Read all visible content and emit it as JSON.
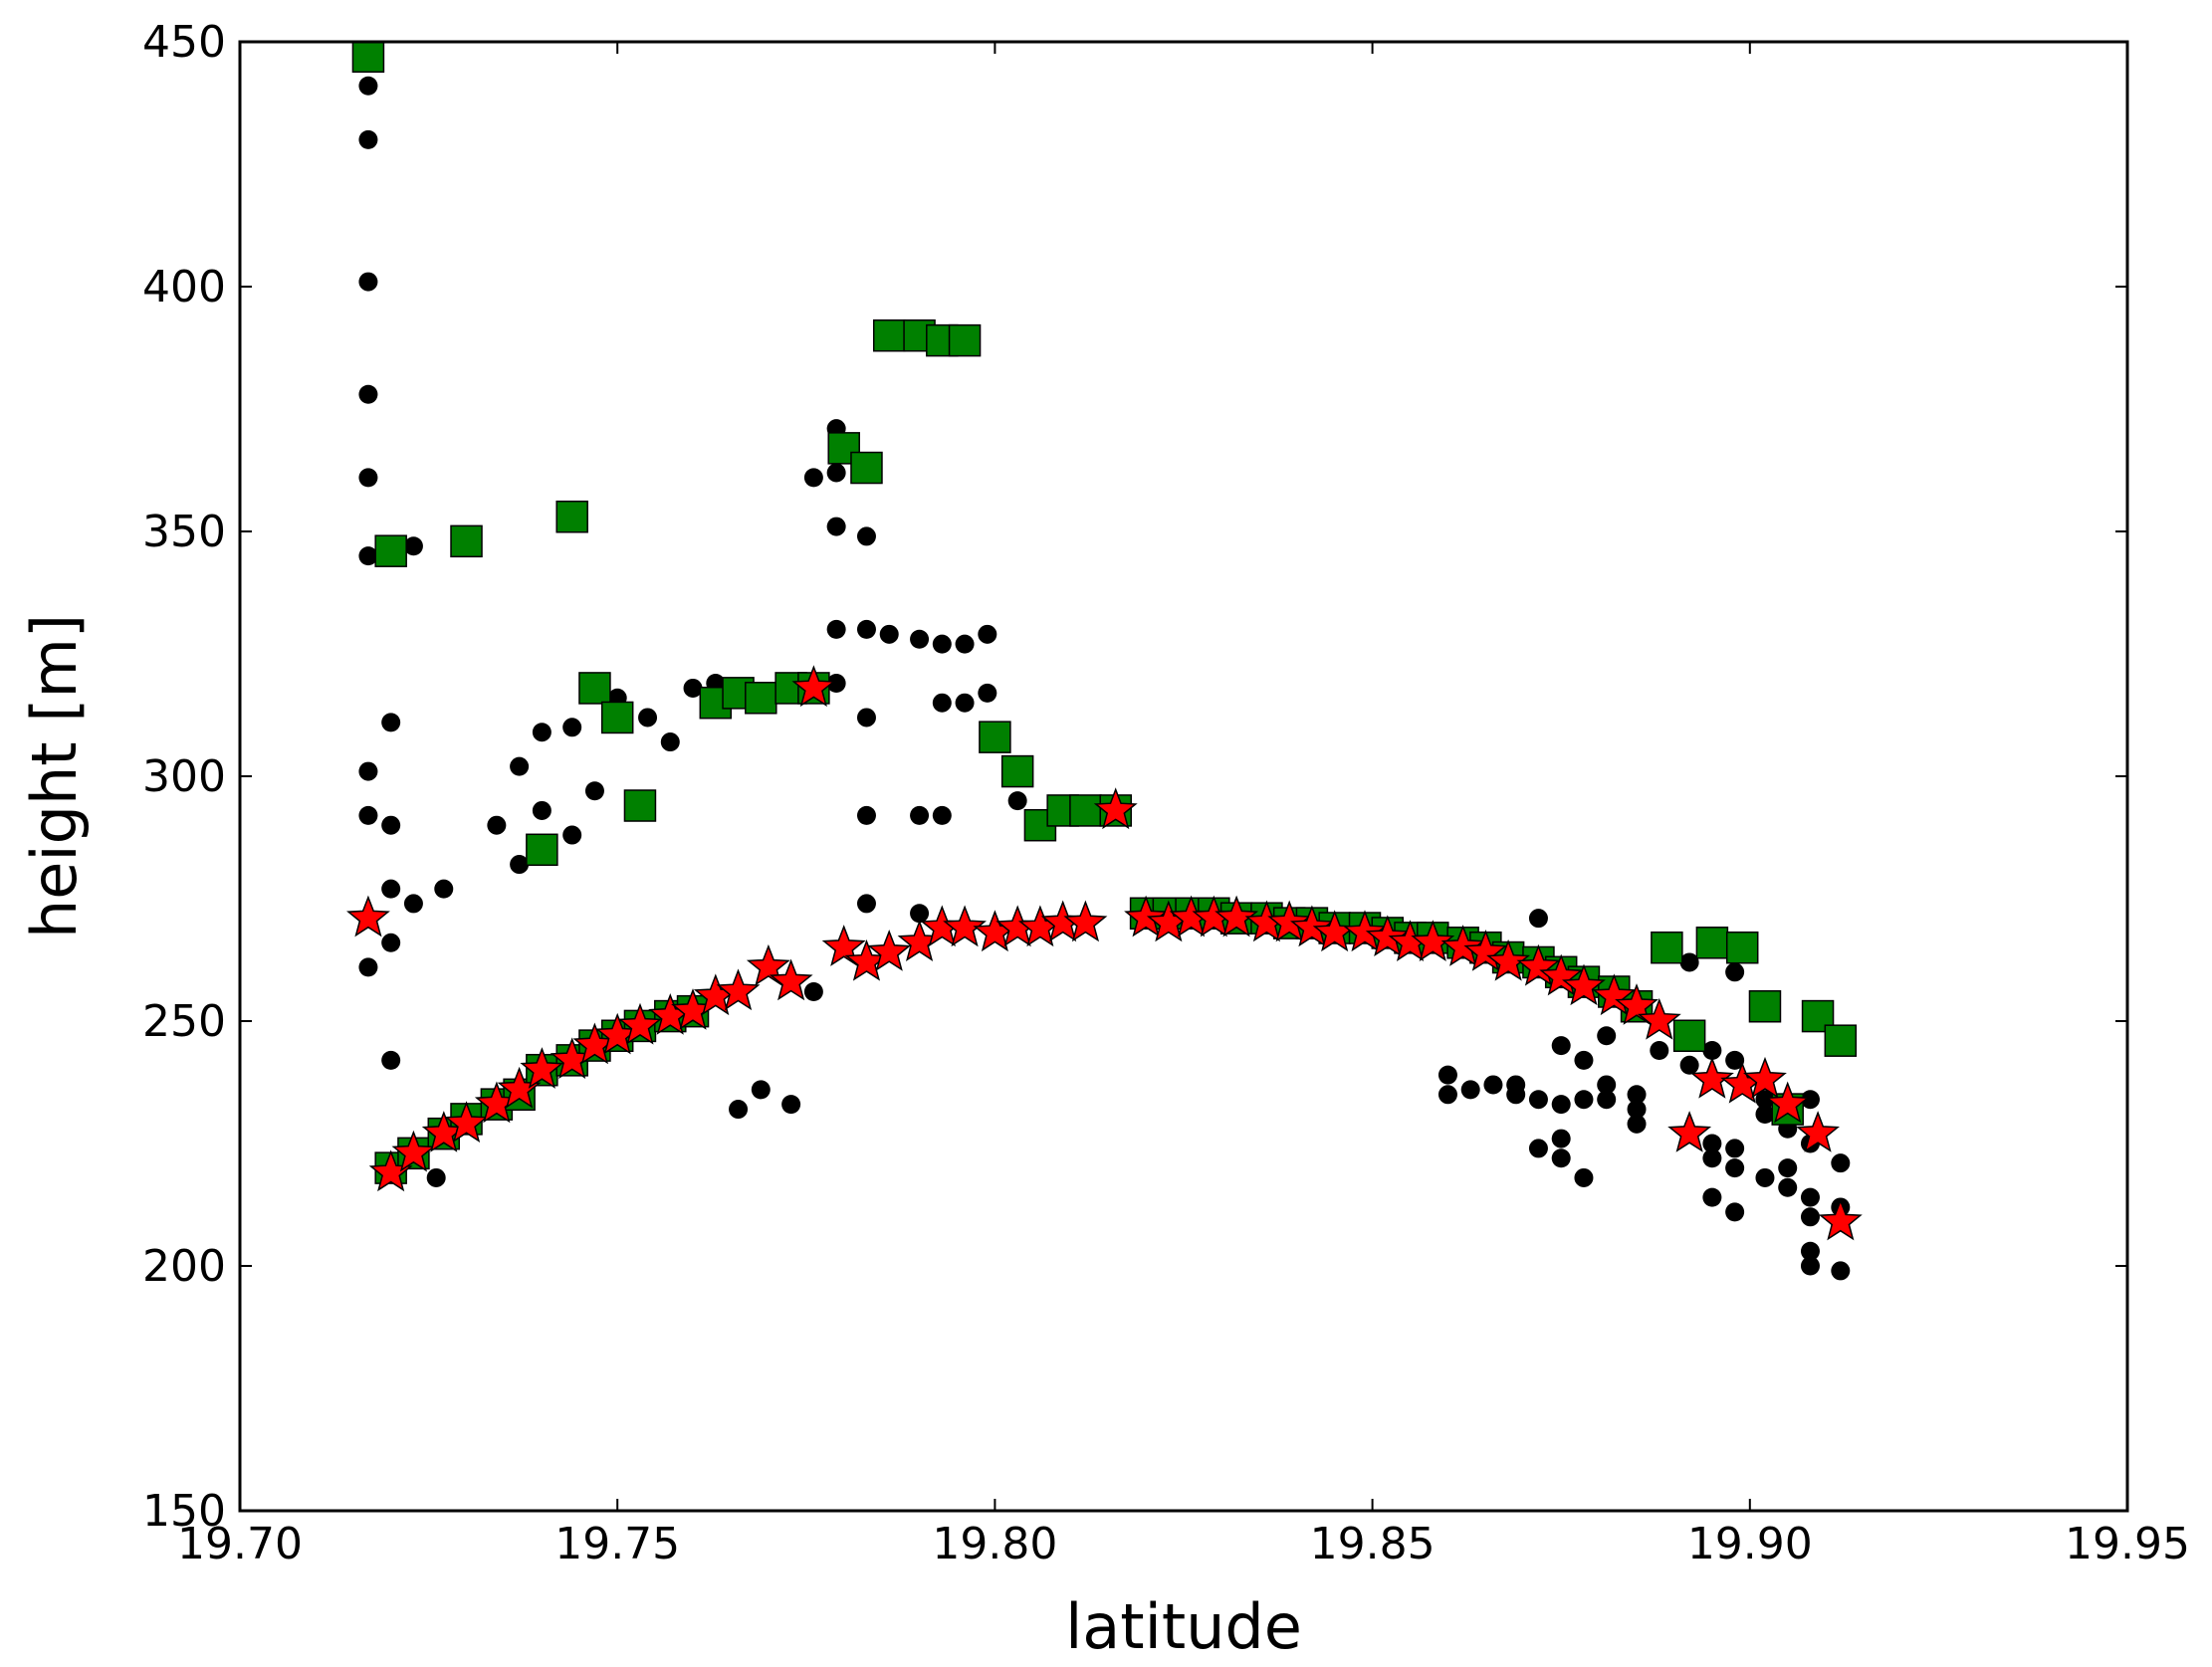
{
  "chart_data": {
    "type": "scatter",
    "xlabel": "latitude",
    "ylabel": "height [m]",
    "xlim": [
      19.7,
      19.95
    ],
    "ylim": [
      150,
      450
    ],
    "xticks": [
      "19.70",
      "19.75",
      "19.80",
      "19.85",
      "19.90",
      "19.95"
    ],
    "yticks": [
      "150",
      "200",
      "250",
      "300",
      "350",
      "400",
      "450"
    ],
    "grid": false,
    "legend": "none",
    "series": [
      {
        "marker": "circle",
        "color": "#000000",
        "points": [
          [
            19.717,
            441
          ],
          [
            19.717,
            430
          ],
          [
            19.717,
            401
          ],
          [
            19.717,
            378
          ],
          [
            19.717,
            361
          ],
          [
            19.717,
            345
          ],
          [
            19.717,
            301
          ],
          [
            19.717,
            292
          ],
          [
            19.717,
            261
          ],
          [
            19.72,
            311
          ],
          [
            19.72,
            290
          ],
          [
            19.72,
            277
          ],
          [
            19.72,
            266
          ],
          [
            19.72,
            242
          ],
          [
            19.723,
            347
          ],
          [
            19.723,
            274
          ],
          [
            19.726,
            218
          ],
          [
            19.727,
            277
          ],
          [
            19.734,
            290
          ],
          [
            19.737,
            302
          ],
          [
            19.737,
            282
          ],
          [
            19.74,
            309
          ],
          [
            19.74,
            293
          ],
          [
            19.744,
            310
          ],
          [
            19.744,
            288
          ],
          [
            19.747,
            297
          ],
          [
            19.75,
            316
          ],
          [
            19.754,
            312
          ],
          [
            19.757,
            307
          ],
          [
            19.76,
            318
          ],
          [
            19.763,
            319
          ],
          [
            19.766,
            232
          ],
          [
            19.769,
            236
          ],
          [
            19.773,
            233
          ],
          [
            19.776,
            361
          ],
          [
            19.776,
            256
          ],
          [
            19.779,
            371
          ],
          [
            19.779,
            362
          ],
          [
            19.779,
            351
          ],
          [
            19.779,
            330
          ],
          [
            19.779,
            319
          ],
          [
            19.783,
            349
          ],
          [
            19.783,
            330
          ],
          [
            19.783,
            312
          ],
          [
            19.783,
            292
          ],
          [
            19.783,
            274
          ],
          [
            19.786,
            329
          ],
          [
            19.79,
            328
          ],
          [
            19.79,
            292
          ],
          [
            19.79,
            272
          ],
          [
            19.793,
            327
          ],
          [
            19.793,
            315
          ],
          [
            19.793,
            292
          ],
          [
            19.796,
            327
          ],
          [
            19.796,
            315
          ],
          [
            19.799,
            329
          ],
          [
            19.799,
            317
          ],
          [
            19.803,
            295
          ],
          [
            19.86,
            239
          ],
          [
            19.86,
            235
          ],
          [
            19.863,
            236
          ],
          [
            19.866,
            237
          ],
          [
            19.869,
            237
          ],
          [
            19.869,
            235
          ],
          [
            19.872,
            271
          ],
          [
            19.872,
            234
          ],
          [
            19.872,
            224
          ],
          [
            19.875,
            226
          ],
          [
            19.875,
            222
          ],
          [
            19.875,
            233
          ],
          [
            19.875,
            245
          ],
          [
            19.878,
            242
          ],
          [
            19.878,
            234
          ],
          [
            19.878,
            218
          ],
          [
            19.881,
            237
          ],
          [
            19.881,
            234
          ],
          [
            19.881,
            247
          ],
          [
            19.885,
            235
          ],
          [
            19.885,
            232
          ],
          [
            19.885,
            229
          ],
          [
            19.888,
            244
          ],
          [
            19.892,
            262
          ],
          [
            19.892,
            241
          ],
          [
            19.895,
            244
          ],
          [
            19.895,
            225
          ],
          [
            19.895,
            222
          ],
          [
            19.895,
            214
          ],
          [
            19.898,
            260
          ],
          [
            19.898,
            242
          ],
          [
            19.898,
            224
          ],
          [
            19.898,
            220
          ],
          [
            19.898,
            211
          ],
          [
            19.902,
            234
          ],
          [
            19.902,
            231
          ],
          [
            19.902,
            218
          ],
          [
            19.905,
            228
          ],
          [
            19.905,
            220
          ],
          [
            19.905,
            216
          ],
          [
            19.908,
            234
          ],
          [
            19.908,
            225
          ],
          [
            19.908,
            214
          ],
          [
            19.908,
            210
          ],
          [
            19.908,
            203
          ],
          [
            19.908,
            200
          ],
          [
            19.912,
            221
          ],
          [
            19.912,
            212
          ],
          [
            19.912,
            199
          ]
        ]
      },
      {
        "marker": "square",
        "color": "#008000",
        "points": [
          [
            19.717,
            447
          ],
          [
            19.72,
            346
          ],
          [
            19.73,
            348
          ],
          [
            19.744,
            353
          ],
          [
            19.747,
            318
          ],
          [
            19.75,
            312
          ],
          [
            19.753,
            294
          ],
          [
            19.74,
            285
          ],
          [
            19.763,
            315
          ],
          [
            19.766,
            317
          ],
          [
            19.769,
            316
          ],
          [
            19.773,
            318
          ],
          [
            19.776,
            318
          ],
          [
            19.78,
            367
          ],
          [
            19.783,
            363
          ],
          [
            19.786,
            390
          ],
          [
            19.79,
            390
          ],
          [
            19.793,
            389
          ],
          [
            19.796,
            389
          ],
          [
            19.8,
            308
          ],
          [
            19.803,
            301
          ],
          [
            19.806,
            290
          ],
          [
            19.809,
            293
          ],
          [
            19.812,
            293
          ],
          [
            19.816,
            293
          ],
          [
            19.72,
            220
          ],
          [
            19.723,
            223
          ],
          [
            19.727,
            227
          ],
          [
            19.73,
            230
          ],
          [
            19.734,
            233
          ],
          [
            19.737,
            235
          ],
          [
            19.74,
            240
          ],
          [
            19.744,
            242
          ],
          [
            19.747,
            245
          ],
          [
            19.75,
            247
          ],
          [
            19.753,
            249
          ],
          [
            19.757,
            251
          ],
          [
            19.76,
            252
          ],
          [
            19.82,
            272
          ],
          [
            19.823,
            272
          ],
          [
            19.826,
            272
          ],
          [
            19.829,
            272
          ],
          [
            19.832,
            271
          ],
          [
            19.836,
            271
          ],
          [
            19.839,
            270
          ],
          [
            19.842,
            270
          ],
          [
            19.845,
            269
          ],
          [
            19.849,
            269
          ],
          [
            19.852,
            268
          ],
          [
            19.855,
            267
          ],
          [
            19.858,
            267
          ],
          [
            19.862,
            266
          ],
          [
            19.865,
            265
          ],
          [
            19.868,
            263
          ],
          [
            19.872,
            262
          ],
          [
            19.875,
            260
          ],
          [
            19.878,
            258
          ],
          [
            19.882,
            256
          ],
          [
            19.885,
            253
          ],
          [
            19.889,
            265
          ],
          [
            19.892,
            247
          ],
          [
            19.895,
            266
          ],
          [
            19.899,
            265
          ],
          [
            19.902,
            253
          ],
          [
            19.905,
            232
          ],
          [
            19.909,
            251
          ],
          [
            19.912,
            246
          ]
        ]
      },
      {
        "marker": "star",
        "color": "#ff0000",
        "points": [
          [
            19.717,
            271
          ],
          [
            19.72,
            219
          ],
          [
            19.723,
            223
          ],
          [
            19.727,
            227
          ],
          [
            19.73,
            229
          ],
          [
            19.734,
            233
          ],
          [
            19.737,
            236
          ],
          [
            19.74,
            240
          ],
          [
            19.744,
            242
          ],
          [
            19.747,
            245
          ],
          [
            19.75,
            247
          ],
          [
            19.753,
            249
          ],
          [
            19.757,
            251
          ],
          [
            19.76,
            252
          ],
          [
            19.763,
            255
          ],
          [
            19.766,
            256
          ],
          [
            19.77,
            261
          ],
          [
            19.773,
            258
          ],
          [
            19.776,
            318
          ],
          [
            19.78,
            265
          ],
          [
            19.783,
            262
          ],
          [
            19.786,
            264
          ],
          [
            19.79,
            266
          ],
          [
            19.793,
            269
          ],
          [
            19.796,
            269
          ],
          [
            19.8,
            268
          ],
          [
            19.803,
            269
          ],
          [
            19.806,
            269
          ],
          [
            19.809,
            270
          ],
          [
            19.812,
            270
          ],
          [
            19.816,
            293
          ],
          [
            19.82,
            271
          ],
          [
            19.823,
            270
          ],
          [
            19.826,
            271
          ],
          [
            19.829,
            271
          ],
          [
            19.832,
            271
          ],
          [
            19.836,
            270
          ],
          [
            19.839,
            270
          ],
          [
            19.842,
            269
          ],
          [
            19.845,
            268
          ],
          [
            19.849,
            268
          ],
          [
            19.852,
            267
          ],
          [
            19.855,
            266
          ],
          [
            19.858,
            266
          ],
          [
            19.862,
            265
          ],
          [
            19.865,
            264
          ],
          [
            19.868,
            262
          ],
          [
            19.872,
            261
          ],
          [
            19.875,
            259
          ],
          [
            19.878,
            257
          ],
          [
            19.882,
            255
          ],
          [
            19.885,
            253
          ],
          [
            19.888,
            250
          ],
          [
            19.892,
            227
          ],
          [
            19.895,
            238
          ],
          [
            19.899,
            237
          ],
          [
            19.902,
            238
          ],
          [
            19.905,
            233
          ],
          [
            19.909,
            227
          ],
          [
            19.912,
            209
          ]
        ]
      }
    ]
  }
}
